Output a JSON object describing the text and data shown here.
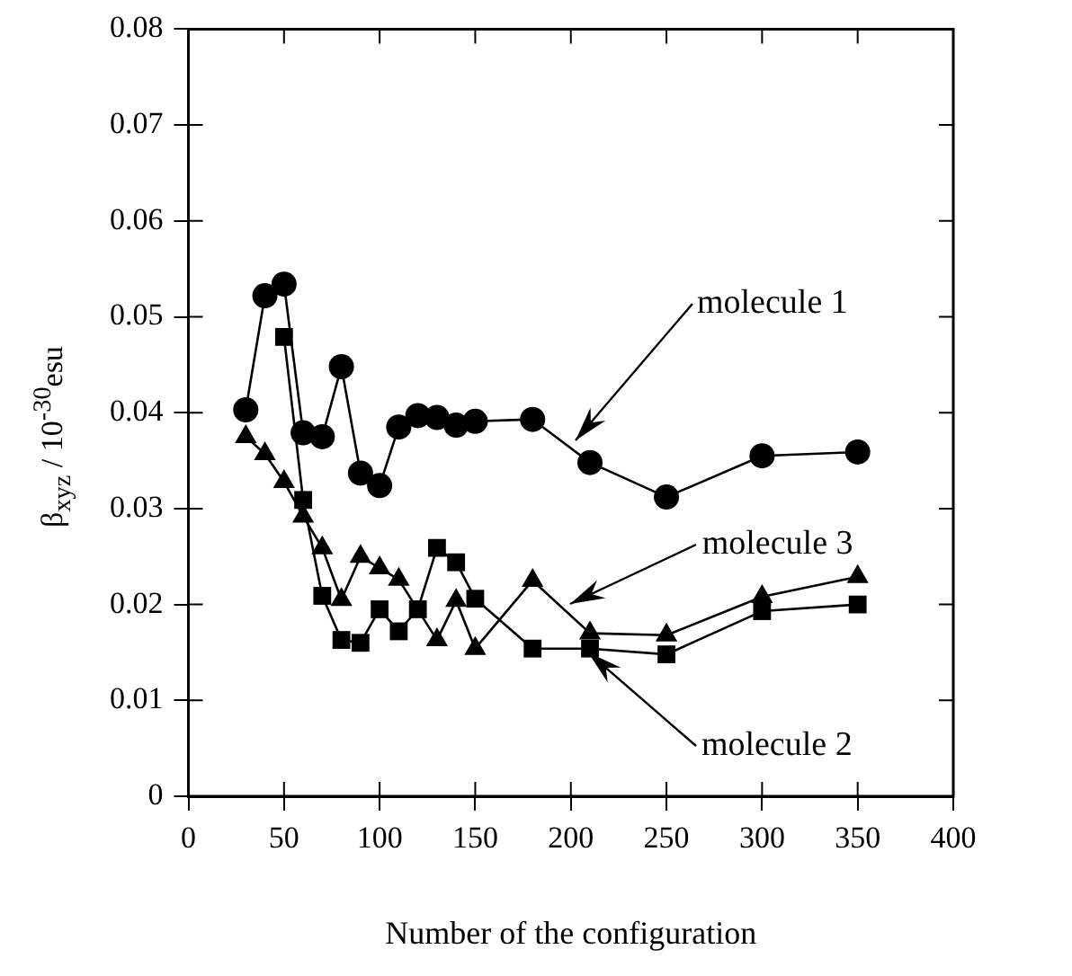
{
  "chart_data": {
    "type": "line",
    "xlabel": "Number of the configuration",
    "ylabel": "β$_{xyz}$ / 10$^{-30}$esu",
    "xlim": [
      0,
      400
    ],
    "xticks": [
      0,
      50,
      100,
      150,
      200,
      250,
      300,
      350,
      400
    ],
    "ylim": [
      0,
      0.08
    ],
    "yticks": [
      0,
      0.01,
      0.02,
      0.03,
      0.04,
      0.05,
      0.06,
      0.07,
      0.08
    ],
    "grid": false,
    "legend": false,
    "line_style": "solid",
    "series": [
      {
        "color": "#000000",
        "marker": "circle",
        "x": [
          30,
          40,
          50,
          60,
          70,
          80,
          90,
          100,
          110,
          120,
          130,
          140,
          150,
          180,
          210,
          250,
          300,
          350
        ],
        "values": [
          0.0403,
          0.0522,
          0.0534,
          0.0379,
          0.0375,
          0.0448,
          0.0337,
          0.0324,
          0.0385,
          0.0397,
          0.0395,
          0.0387,
          0.0391,
          0.0393,
          0.0348,
          0.0312,
          0.0355,
          0.0359
        ]
      },
      {
        "color": "#000000",
        "marker": "square",
        "x": [
          50,
          60,
          70,
          80,
          90,
          100,
          110,
          120,
          130,
          140,
          150,
          180,
          210,
          250,
          300,
          350
        ],
        "values": [
          0.0479,
          0.0309,
          0.0209,
          0.0163,
          0.016,
          0.0195,
          0.0172,
          0.0195,
          0.0259,
          0.0244,
          0.0206,
          0.0154,
          0.0154,
          0.0148,
          0.0193,
          0.02
        ]
      },
      {
        "color": "#000000",
        "marker": "triangle",
        "x": [
          30,
          40,
          50,
          60,
          70,
          80,
          90,
          100,
          110,
          130,
          140,
          150,
          180,
          210,
          250,
          300,
          350
        ],
        "values": [
          0.0375,
          0.0357,
          0.0328,
          0.0292,
          0.0259,
          0.0205,
          0.025,
          0.0238,
          0.0226,
          0.0163,
          0.0204,
          0.0154,
          0.0225,
          0.017,
          0.0168,
          0.0208,
          0.0229
        ]
      }
    ],
    "annotations": [
      {
        "text": "molecule 1",
        "x": 202,
        "y": 0.0372
      },
      {
        "text": "molecule 3",
        "x": 200,
        "y": 0.02
      },
      {
        "text": "molecule 2",
        "x": 209,
        "y": 0.015
      }
    ]
  }
}
